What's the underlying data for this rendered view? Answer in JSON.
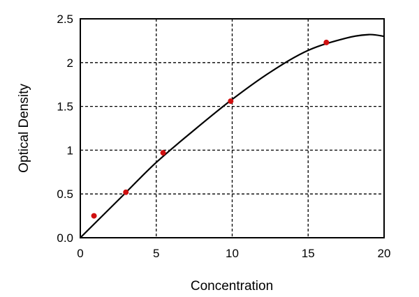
{
  "chart_data": {
    "type": "scatter",
    "title": "",
    "xlabel": "Concentration",
    "ylabel": "Optical Density",
    "xlim": [
      0,
      20
    ],
    "ylim": [
      0,
      2.5
    ],
    "xticks": [
      "0",
      "5",
      "10",
      "15",
      "20"
    ],
    "yticks": [
      "0.0",
      "0.5",
      "1",
      "1.5",
      "2",
      "2.5"
    ],
    "grid": true,
    "series": [
      {
        "kind": "points",
        "color": "#d01010",
        "x": [
          0.9,
          3.0,
          5.45,
          9.9,
          16.2
        ],
        "y": [
          0.25,
          0.52,
          0.97,
          1.56,
          2.23
        ]
      },
      {
        "kind": "fitted-curve",
        "color": "#000000",
        "x": [
          0,
          2.5,
          5,
          7.5,
          10,
          12.5,
          15,
          17.5,
          19,
          20
        ],
        "y": [
          0,
          0.43,
          0.86,
          1.23,
          1.58,
          1.89,
          2.14,
          2.28,
          2.32,
          2.3
        ]
      }
    ]
  }
}
